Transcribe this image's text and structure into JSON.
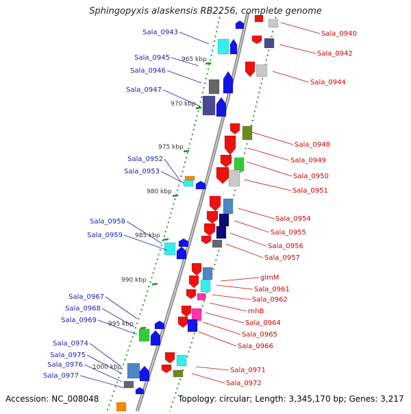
{
  "title": "Sphingopyxis alaskensis RB2256, complete genome",
  "accession_label": "Accession: NC_008048",
  "summary_label": "Topology: circular; Length: 3,345,170 bp; Genes: 3,217",
  "colors": {
    "backbone": "#8c8c8c",
    "ticks": "#1f8f1f",
    "label_left": "#1a1ab0",
    "label_right": "#cc0000",
    "kbp_text": "#333333"
  },
  "kbp_marks": [
    "965 kbp",
    "970 kbp",
    "975 kbp",
    "980 kbp",
    "985 kbp",
    "990 kbp",
    "995 kbp",
    "1000 kbp"
  ],
  "left_genes": [
    "Sala_0943",
    "Sala_0945",
    "Sala_0946",
    "Sala_0947",
    "Sala_0952",
    "Sala_0953",
    "Sala_0958",
    "Sala_0959",
    "Sala_0967",
    "Sala_0968",
    "Sala_0969",
    "Sala_0974",
    "Sala_0975",
    "Sala_0976",
    "Sala_0977"
  ],
  "right_genes": [
    "Sala_0940",
    "Sala_0942",
    "Sala_0944",
    "Sala_0948",
    "Sala_0949",
    "Sala_0950",
    "Sala_0951",
    "Sala_0954",
    "Sala_0955",
    "Sala_0956",
    "Sala_0957",
    "glmM",
    "Sala_0961",
    "Sala_0962",
    "rnhB",
    "Sala_0964",
    "Sala_0965",
    "Sala_0966",
    "Sala_0971",
    "Sala_0972"
  ]
}
